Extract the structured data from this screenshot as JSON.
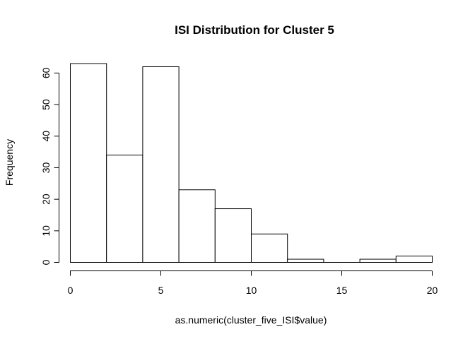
{
  "chart_data": {
    "type": "bar",
    "title": "ISI Distribution for Cluster 5",
    "xlabel": "as.numeric(cluster_five_ISI$value)",
    "ylabel": "Frequency",
    "bins": [
      {
        "start": 0,
        "end": 2,
        "count": 63
      },
      {
        "start": 2,
        "end": 4,
        "count": 34
      },
      {
        "start": 4,
        "end": 6,
        "count": 62
      },
      {
        "start": 6,
        "end": 8,
        "count": 23
      },
      {
        "start": 8,
        "end": 10,
        "count": 17
      },
      {
        "start": 10,
        "end": 12,
        "count": 9
      },
      {
        "start": 12,
        "end": 14,
        "count": 1
      },
      {
        "start": 14,
        "end": 16,
        "count": 0
      },
      {
        "start": 16,
        "end": 18,
        "count": 1
      },
      {
        "start": 18,
        "end": 20,
        "count": 2
      }
    ],
    "xlim": [
      0,
      20
    ],
    "ylim": [
      0,
      63
    ],
    "x_ticks": [
      "0",
      "5",
      "10",
      "15",
      "20"
    ],
    "y_ticks": [
      "0",
      "10",
      "20",
      "30",
      "40",
      "50",
      "60"
    ],
    "grid": false,
    "legend": "none"
  }
}
